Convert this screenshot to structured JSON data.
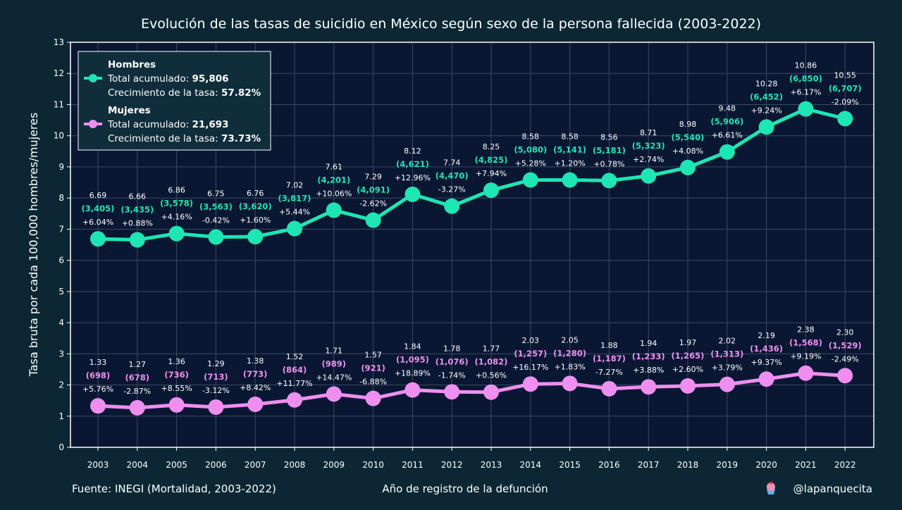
{
  "chart_data": {
    "type": "line",
    "title": "Evolución de las tasas de suicidio en México según sexo de la persona fallecida (2003-2022)",
    "xlabel": "Año de registro de la defunción",
    "ylabel": "Tasa bruta por cada 100,000 hombres/mujeres",
    "ylim": [
      0,
      13
    ],
    "yticks": [
      0,
      1,
      2,
      3,
      4,
      5,
      6,
      7,
      8,
      9,
      10,
      11,
      12,
      13
    ],
    "grid": true,
    "legend_position": "top-left",
    "x": [
      "2003",
      "2004",
      "2005",
      "2006",
      "2007",
      "2008",
      "2009",
      "2010",
      "2011",
      "2012",
      "2013",
      "2014",
      "2015",
      "2016",
      "2017",
      "2018",
      "2019",
      "2020",
      "2021",
      "2022"
    ],
    "series": [
      {
        "name": "Hombres",
        "color": "#1de6b4",
        "values": [
          6.69,
          6.66,
          6.86,
          6.75,
          6.76,
          7.02,
          7.61,
          7.29,
          8.12,
          7.74,
          8.25,
          8.58,
          8.58,
          8.56,
          8.71,
          8.98,
          9.48,
          10.28,
          10.86,
          10.55
        ],
        "value_labels": [
          "6.69",
          "6.66",
          "6.86",
          "6.75",
          "6.76",
          "7.02",
          "7.61",
          "7.29",
          "8.12",
          "7.74",
          "8.25",
          "8.58",
          "8.58",
          "8.56",
          "8.71",
          "8.98",
          "9.48",
          "10.28",
          "10.86",
          "10.55"
        ],
        "count_labels": [
          "(3,405)",
          "(3,435)",
          "(3,578)",
          "(3,563)",
          "(3,620)",
          "(3,817)",
          "(4,201)",
          "(4,091)",
          "(4,621)",
          "(4,470)",
          "(4,825)",
          "(5,080)",
          "(5,141)",
          "(5,181)",
          "(5,323)",
          "(5,540)",
          "(5,906)",
          "(6,452)",
          "(6,850)",
          "(6,707)"
        ],
        "change_labels": [
          "+6.04%",
          "+0.88%",
          "+4.16%",
          "-0.42%",
          "+1.60%",
          "+5.44%",
          "+10.06%",
          "-2.62%",
          "+12.96%",
          "-3.27%",
          "+7.94%",
          "+5.28%",
          "+1.20%",
          "+0.78%",
          "+2.74%",
          "+4.08%",
          "+6.61%",
          "+9.24%",
          "+6.17%",
          "-2.09%"
        ]
      },
      {
        "name": "Mujeres",
        "color": "#ee8ff0",
        "values": [
          1.33,
          1.27,
          1.36,
          1.29,
          1.38,
          1.52,
          1.71,
          1.57,
          1.84,
          1.78,
          1.77,
          2.03,
          2.05,
          1.88,
          1.94,
          1.97,
          2.02,
          2.19,
          2.38,
          2.3
        ],
        "value_labels": [
          "1.33",
          "1.27",
          "1.36",
          "1.29",
          "1.38",
          "1.52",
          "1.71",
          "1.57",
          "1.84",
          "1.78",
          "1.77",
          "2.03",
          "2.05",
          "1.88",
          "1.94",
          "1.97",
          "2.02",
          "2.19",
          "2.38",
          "2.30"
        ],
        "count_labels": [
          "(698)",
          "(678)",
          "(736)",
          "(713)",
          "(773)",
          "(864)",
          "(989)",
          "(921)",
          "(1,095)",
          "(1,076)",
          "(1,082)",
          "(1,257)",
          "(1,280)",
          "(1,187)",
          "(1,233)",
          "(1,265)",
          "(1,313)",
          "(1,436)",
          "(1,568)",
          "(1,529)"
        ],
        "change_labels": [
          "+5.76%",
          "-2.87%",
          "+8.55%",
          "-3.12%",
          "+8.42%",
          "+11.77%",
          "+14.47%",
          "-6.88%",
          "+18.89%",
          "-1.74%",
          "+0.56%",
          "+16.17%",
          "+1.83%",
          "-7.27%",
          "+3.88%",
          "+2.60%",
          "+3.79%",
          "+9.37%",
          "+9.19%",
          "-2.49%"
        ]
      }
    ],
    "legend": [
      {
        "name": "Hombres",
        "total_label": "Total acumulado: ",
        "total_value": "95,806",
        "growth_label": "Crecimiento de la tasa: ",
        "growth_value": "57.82%"
      },
      {
        "name": "Mujeres",
        "total_label": "Total acumulado: ",
        "total_value": "21,693",
        "growth_label": "Crecimiento de la tasa: ",
        "growth_value": "73.73%"
      }
    ]
  },
  "footer": {
    "source": "Fuente: INEGI (Mortalidad, 2003-2022)",
    "credit": "@lapanquecita",
    "credit_icon": "cupcake-icon"
  },
  "colors": {
    "background": "#0c2733",
    "plot_background": "#0a1733",
    "grid": "#3c4a64",
    "axis": "#ffffff"
  }
}
